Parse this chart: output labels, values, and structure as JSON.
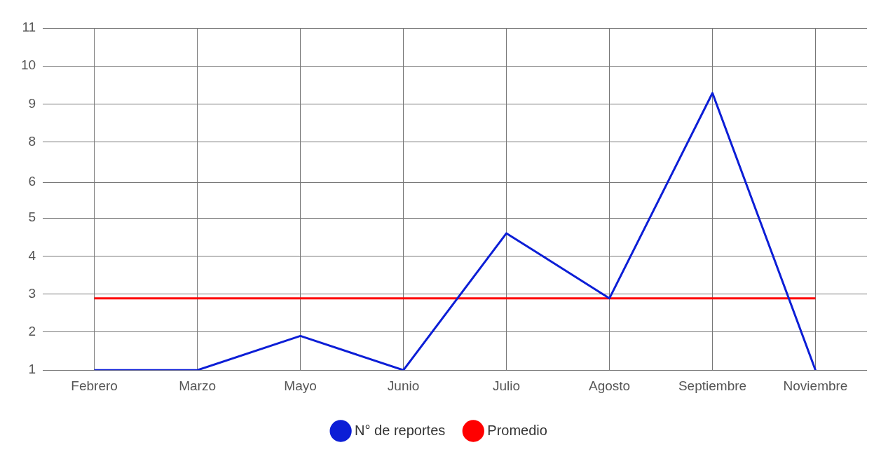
{
  "chart_data": {
    "type": "line",
    "categories": [
      "Febrero",
      "Marzo",
      "Mayo",
      "Junio",
      "Julio",
      "Agosto",
      "Septiembre",
      "Noviembre"
    ],
    "series": [
      {
        "name": "N° de reportes",
        "color": "#0c1ed6",
        "values": [
          1,
          1,
          2,
          1,
          5,
          3.1,
          9.1,
          1
        ]
      },
      {
        "name": "Promedio",
        "color": "#ff0000",
        "values": [
          3.1,
          3.1,
          3.1,
          3.1,
          3.1,
          3.1,
          3.1,
          3.1
        ]
      }
    ],
    "ylim": [
      1,
      11
    ],
    "yticks": [
      1,
      {
        "value": 2.111,
        "label": "2"
      },
      {
        "value": 3.222,
        "label": "3"
      },
      {
        "value": 4.333,
        "label": "4"
      },
      {
        "value": 5.444,
        "label": "5"
      },
      {
        "value": 6.49,
        "label": "6"
      },
      {
        "value": 7.667,
        "label": "8"
      },
      {
        "value": 8.778,
        "label": "9"
      },
      {
        "value": 9.889,
        "label": "10"
      },
      11
    ],
    "grid": true,
    "legend": "bottom",
    "marker": "none",
    "line_style": "solid"
  }
}
